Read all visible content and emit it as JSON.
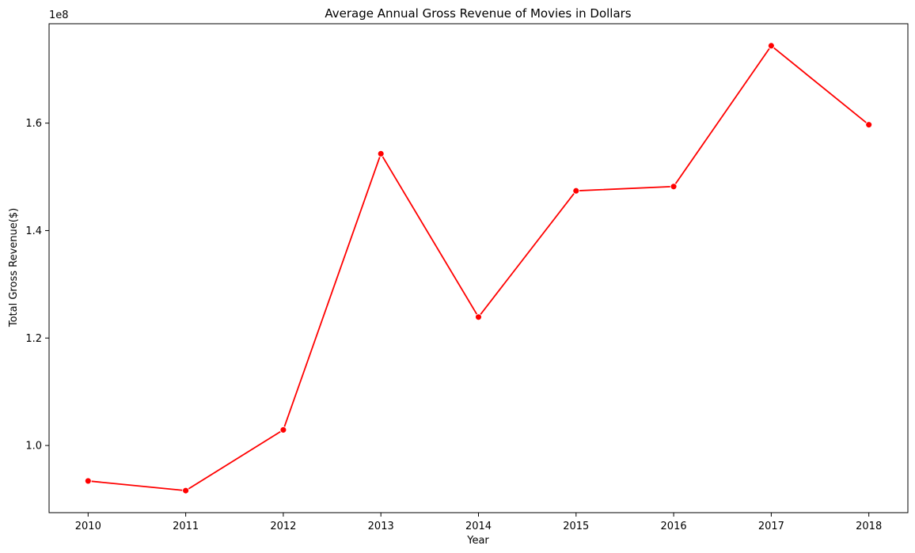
{
  "chart_data": {
    "type": "line",
    "title": "Average Annual Gross Revenue of Movies in Dollars",
    "xlabel": "Year",
    "ylabel": "Total Gross Revenue($)",
    "y_offset_label": "1e8",
    "x": [
      2010,
      2011,
      2012,
      2013,
      2014,
      2015,
      2016,
      2017,
      2018
    ],
    "xticks": [
      "2010",
      "2011",
      "2012",
      "2013",
      "2014",
      "2015",
      "2016",
      "2017",
      "2018"
    ],
    "xlim": [
      2009.6,
      2018.4
    ],
    "ylim": [
      87500000,
      178500000
    ],
    "yticks": [
      100000000,
      120000000,
      140000000,
      160000000
    ],
    "ytick_labels": [
      "1.0",
      "1.2",
      "1.4",
      "1.6"
    ],
    "series": [
      {
        "values": [
          93400000,
          91600000,
          102900000,
          154300000,
          123900000,
          147400000,
          148200000,
          174400000,
          159700000
        ],
        "color": "#ff0000",
        "marker": "circle"
      }
    ],
    "grid": false,
    "legend": "none"
  }
}
